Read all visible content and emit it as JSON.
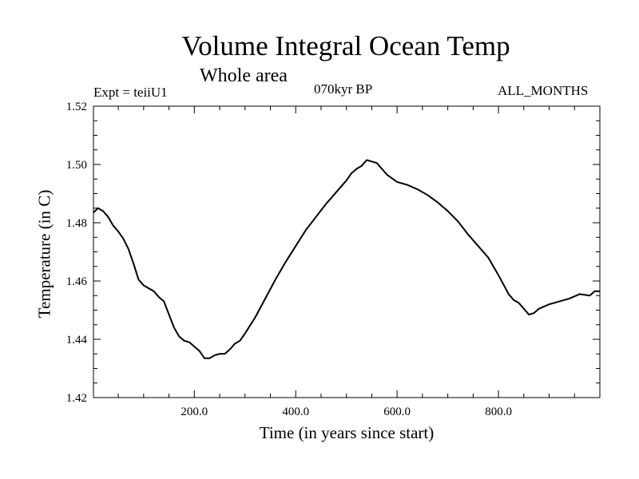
{
  "chart_data": {
    "type": "line",
    "title": "Volume Integral Ocean Temp",
    "subtitle": "Whole area",
    "annotations": {
      "left": "Expt = teiiU1",
      "center": "070kyr BP",
      "right": "ALL_MONTHS"
    },
    "xlabel": "Time (in years since start)",
    "ylabel": "Temperature (in C)",
    "xlim": [
      1,
      1000
    ],
    "ylim": [
      1.42,
      1.52
    ],
    "xticks": [
      200,
      400,
      600,
      800
    ],
    "xtick_labels": [
      "200.0",
      "400.0",
      "600.0",
      "800.0"
    ],
    "yticks": [
      1.42,
      1.44,
      1.46,
      1.48,
      1.5,
      1.52
    ],
    "ytick_labels": [
      "1.42",
      "1.44",
      "1.46",
      "1.48",
      "1.50",
      "1.52"
    ],
    "grid": false,
    "series": [
      {
        "color": "#000000",
        "x": [
          1,
          10,
          20,
          30,
          40,
          50,
          60,
          70,
          80,
          90,
          100,
          110,
          120,
          130,
          140,
          150,
          160,
          170,
          180,
          190,
          200,
          210,
          220,
          230,
          240,
          250,
          260,
          270,
          280,
          290,
          300,
          320,
          340,
          360,
          380,
          400,
          420,
          440,
          460,
          480,
          500,
          510,
          520,
          530,
          540,
          550,
          560,
          570,
          580,
          600,
          620,
          640,
          660,
          680,
          700,
          720,
          740,
          760,
          780,
          800,
          820,
          830,
          840,
          850,
          860,
          870,
          880,
          900,
          920,
          940,
          960,
          980,
          990,
          1000
        ],
        "y": [
          1.4835,
          1.485,
          1.484,
          1.482,
          1.479,
          1.477,
          1.4745,
          1.471,
          1.466,
          1.4605,
          1.4585,
          1.4575,
          1.4565,
          1.4545,
          1.453,
          1.4485,
          1.444,
          1.441,
          1.4395,
          1.439,
          1.4375,
          1.436,
          1.4335,
          1.4335,
          1.4345,
          1.435,
          1.435,
          1.4365,
          1.4385,
          1.4395,
          1.442,
          1.4475,
          1.454,
          1.4605,
          1.4665,
          1.472,
          1.4775,
          1.482,
          1.4865,
          1.4905,
          1.4945,
          1.497,
          1.4985,
          1.4995,
          1.5015,
          1.501,
          1.5005,
          1.4985,
          1.4965,
          1.494,
          1.493,
          1.4915,
          1.4895,
          1.487,
          1.484,
          1.4805,
          1.476,
          1.472,
          1.468,
          1.462,
          1.4555,
          1.4535,
          1.4525,
          1.4505,
          1.4485,
          1.449,
          1.4505,
          1.452,
          1.453,
          1.454,
          1.4555,
          1.455,
          1.4565,
          1.4565
        ]
      }
    ]
  }
}
